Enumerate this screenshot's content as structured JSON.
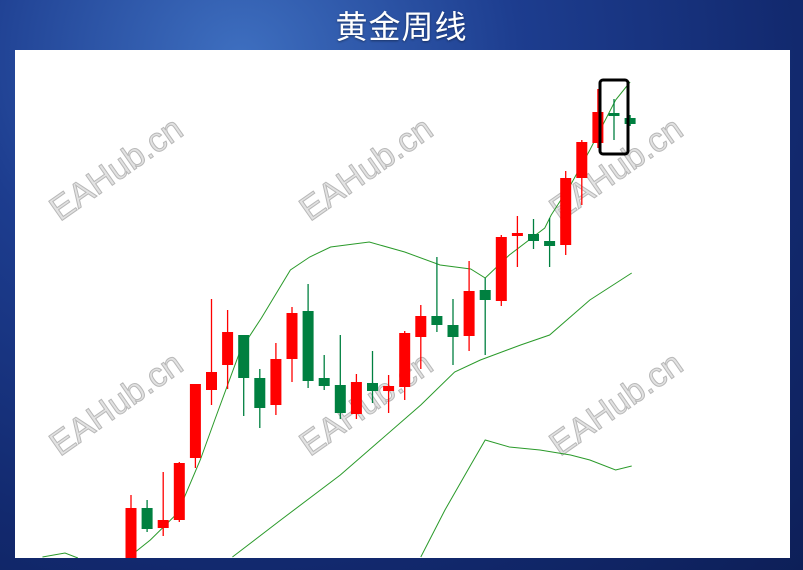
{
  "title": "黄金周线",
  "watermark": "EAHub.cn",
  "colors": {
    "up": "#ff0000",
    "down": "#008040",
    "line": "#2a9a2a",
    "highlight": "#000000",
    "background": "#1d3d8f"
  },
  "chart_data": {
    "type": "candlestick",
    "title": "黄金周线",
    "axes_visible": false,
    "grid": false,
    "candles": [
      {
        "o": 42,
        "c": 92,
        "h": 105,
        "l": 40
      },
      {
        "o": 92,
        "c": 71,
        "h": 100,
        "l": 68
      },
      {
        "o": 72,
        "c": 80,
        "h": 128,
        "l": 64
      },
      {
        "o": 80,
        "c": 137,
        "h": 138,
        "l": 78
      },
      {
        "o": 142,
        "c": 216,
        "h": 216,
        "l": 132
      },
      {
        "o": 210,
        "c": 228,
        "h": 301,
        "l": 195
      },
      {
        "o": 235,
        "c": 268,
        "h": 290,
        "l": 211
      },
      {
        "o": 265,
        "c": 222,
        "h": 265,
        "l": 184
      },
      {
        "o": 222,
        "c": 192,
        "h": 231,
        "l": 172
      },
      {
        "o": 195,
        "c": 241,
        "h": 257,
        "l": 185
      },
      {
        "o": 241,
        "c": 287,
        "h": 293,
        "l": 218
      },
      {
        "o": 289,
        "c": 219,
        "h": 316,
        "l": 212
      },
      {
        "o": 222,
        "c": 214,
        "h": 245,
        "l": 210
      },
      {
        "o": 215,
        "c": 187,
        "h": 265,
        "l": 181
      },
      {
        "o": 186,
        "c": 218,
        "h": 226,
        "l": 181
      },
      {
        "o": 217,
        "c": 209,
        "h": 249,
        "l": 197
      },
      {
        "o": 209,
        "c": 214,
        "h": 225,
        "l": 187
      },
      {
        "o": 213,
        "c": 267,
        "h": 269,
        "l": 200
      },
      {
        "o": 263,
        "c": 284,
        "h": 295,
        "l": 231
      },
      {
        "o": 284,
        "c": 275,
        "h": 343,
        "l": 268
      },
      {
        "o": 275,
        "c": 263,
        "h": 301,
        "l": 235
      },
      {
        "o": 264,
        "c": 309,
        "h": 339,
        "l": 249
      },
      {
        "o": 310,
        "c": 300,
        "h": 322,
        "l": 245
      },
      {
        "o": 299,
        "c": 363,
        "h": 365,
        "l": 294
      },
      {
        "o": 364,
        "c": 367,
        "h": 384,
        "l": 333
      },
      {
        "o": 366,
        "c": 359,
        "h": 381,
        "l": 351
      },
      {
        "o": 359,
        "c": 354,
        "h": 382,
        "l": 333
      },
      {
        "o": 355,
        "c": 422,
        "h": 429,
        "l": 345
      },
      {
        "o": 422,
        "c": 458,
        "h": 460,
        "l": 395
      },
      {
        "o": 457,
        "c": 488,
        "h": 511,
        "l": 452
      },
      {
        "o": 487,
        "c": 484,
        "h": 501,
        "l": 460
      },
      {
        "o": 482,
        "c": 476,
        "h": 485,
        "l": 474
      }
    ],
    "highlight_index": 30,
    "lines": [
      {
        "points": [
          [
            -0.2,
            42
          ],
          [
            1.2,
            60
          ],
          [
            2.9,
            87
          ],
          [
            4.3,
            140
          ],
          [
            5.2,
            180
          ],
          [
            6.8,
            250
          ],
          [
            8.1,
            282
          ],
          [
            9.9,
            330
          ],
          [
            11.1,
            343
          ],
          [
            12.4,
            353
          ],
          [
            14.8,
            358
          ],
          [
            17.0,
            348
          ],
          [
            19.2,
            335
          ],
          [
            21.1,
            331
          ],
          [
            22.0,
            322
          ],
          [
            23.5,
            345
          ],
          [
            25.7,
            372
          ],
          [
            26.1,
            385
          ],
          [
            27.3,
            415
          ],
          [
            28.5,
            450
          ],
          [
            30.1,
            500
          ],
          [
            31.0,
            518
          ]
        ]
      },
      {
        "points": [
          [
            6.3,
            43
          ],
          [
            9.3,
            80
          ],
          [
            13.0,
            125
          ],
          [
            15.5,
            160
          ],
          [
            18.0,
            195
          ],
          [
            20.1,
            228
          ],
          [
            21.7,
            240
          ],
          [
            24.2,
            255
          ],
          [
            26.0,
            265
          ],
          [
            28.5,
            300
          ],
          [
            31.1,
            327
          ]
        ]
      },
      {
        "points": [
          [
            18.0,
            43
          ],
          [
            19.5,
            90
          ],
          [
            21.1,
            135
          ],
          [
            22.0,
            160
          ],
          [
            23.5,
            153
          ],
          [
            25.4,
            150
          ],
          [
            27.3,
            145
          ],
          [
            28.5,
            140
          ],
          [
            30.1,
            130
          ],
          [
            31.1,
            134
          ]
        ]
      },
      {
        "points": [
          [
            -5.5,
            43
          ],
          [
            -4.1,
            47
          ],
          [
            -3.3,
            42
          ]
        ]
      }
    ]
  }
}
